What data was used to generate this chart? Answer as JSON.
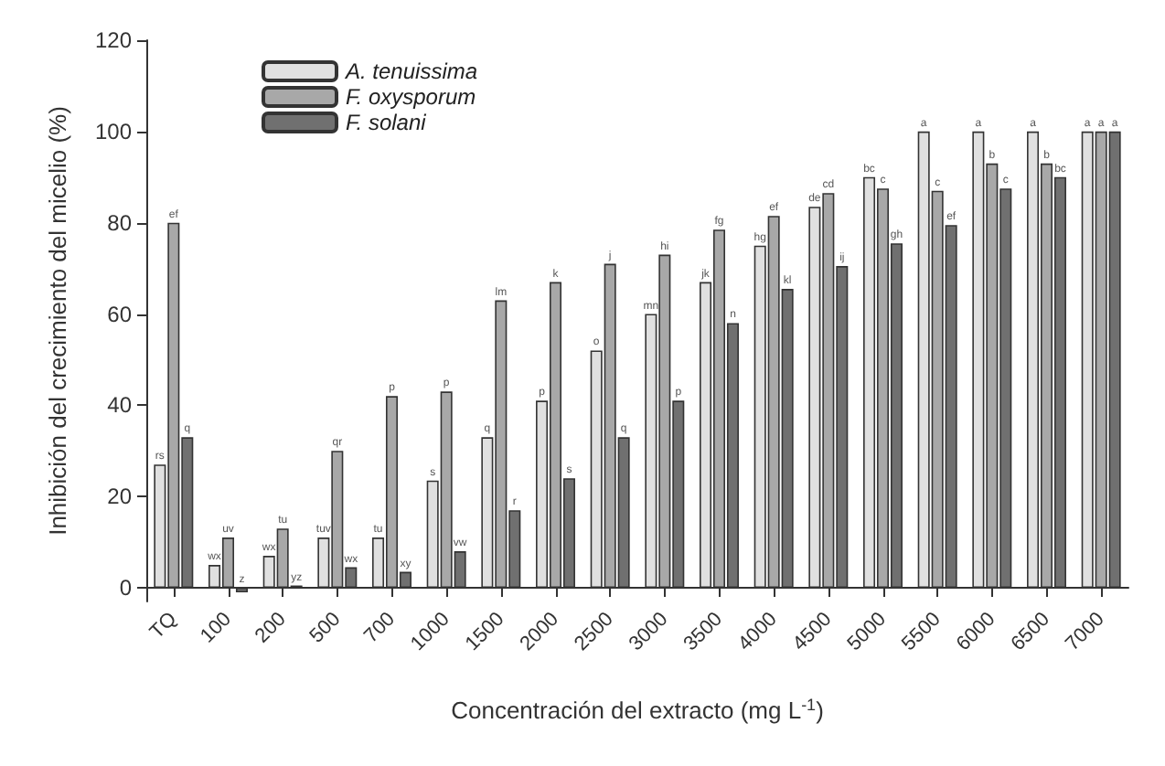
{
  "chart_data": {
    "type": "bar",
    "xlabel": "Concentración del extracto (mg L$^{-1}$)",
    "ylabel": "Inhibición del crecimiento del micelio (%)",
    "categories": [
      "TQ",
      "100",
      "200",
      "500",
      "700",
      "1000",
      "1500",
      "2000",
      "2500",
      "3000",
      "3500",
      "4000",
      "4500",
      "5000",
      "5500",
      "6000",
      "6500",
      "7000"
    ],
    "series": [
      {
        "name": "A. tenuissima",
        "color": "#e0e0e0",
        "values": [
          27,
          5,
          7,
          11,
          11,
          23.5,
          33,
          41,
          52,
          60,
          67,
          75,
          83.5,
          90,
          100,
          100,
          100,
          100
        ],
        "value_labels": [
          "rs",
          "wx",
          "wx",
          "tuv",
          "tu",
          "s",
          "q",
          "p",
          "o",
          "mn",
          "jk",
          "hg",
          "de",
          "bc",
          "a",
          "a",
          "a",
          "a"
        ]
      },
      {
        "name": "F. oxysporum",
        "color": "#a8a8a8",
        "values": [
          80,
          11,
          13,
          30,
          42,
          43,
          63,
          67,
          71,
          73,
          78.5,
          81.5,
          86.5,
          87.5,
          87,
          93,
          93,
          100
        ],
        "value_labels": [
          "ef",
          "uv",
          "tu",
          "qr",
          "p",
          "p",
          "lm",
          "k",
          "j",
          "hi",
          "fg",
          "ef",
          "cd",
          "c",
          "c",
          "b",
          "b",
          "a"
        ]
      },
      {
        "name": "F. solani",
        "color": "#707070",
        "values": [
          33,
          -1,
          0.5,
          4.5,
          3.5,
          8,
          17,
          24,
          33,
          41,
          58,
          65.5,
          70.5,
          75.5,
          79.5,
          87.5,
          90,
          100
        ],
        "value_labels": [
          "q",
          "z",
          "yz",
          "wx",
          "xy",
          "vw",
          "r",
          "s",
          "q",
          "p",
          "n",
          "kl",
          "ij",
          "gh",
          "ef",
          "c",
          "bc",
          "a"
        ]
      }
    ],
    "ylim": [
      -3,
      120
    ],
    "yticks": [
      0,
      20,
      40,
      60,
      80,
      100,
      120
    ],
    "grid": false,
    "legend": "top left"
  }
}
